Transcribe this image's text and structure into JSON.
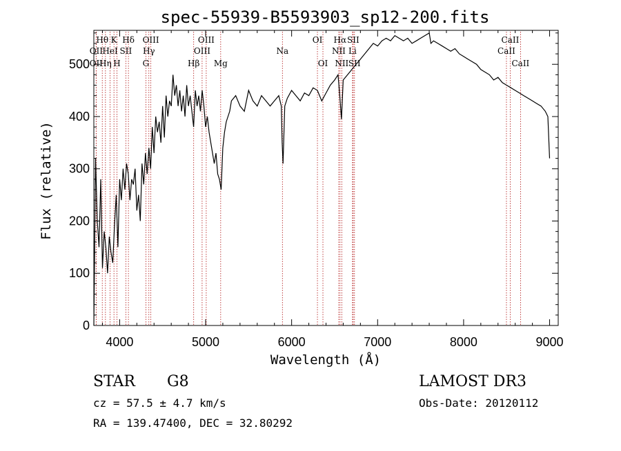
{
  "chart_data": {
    "type": "line",
    "title": "spec-55939-B5593903_sp12-200.fits",
    "xlabel": "Wavelength (Å)",
    "ylabel": "Flux (relative)",
    "xlim": [
      3700,
      9100
    ],
    "ylim": [
      0,
      565
    ],
    "xticks": [
      4000,
      5000,
      6000,
      7000,
      8000,
      9000
    ],
    "yticks": [
      0,
      100,
      200,
      300,
      400,
      500
    ],
    "grid": false,
    "series": [
      {
        "name": "flux",
        "x": [
          3700,
          3720,
          3740,
          3760,
          3780,
          3800,
          3820,
          3840,
          3860,
          3880,
          3900,
          3920,
          3940,
          3960,
          3980,
          4000,
          4020,
          4040,
          4060,
          4080,
          4100,
          4120,
          4140,
          4160,
          4180,
          4200,
          4220,
          4240,
          4260,
          4280,
          4300,
          4320,
          4340,
          4360,
          4380,
          4400,
          4420,
          4440,
          4460,
          4480,
          4500,
          4520,
          4540,
          4560,
          4580,
          4600,
          4620,
          4640,
          4660,
          4680,
          4700,
          4720,
          4740,
          4760,
          4780,
          4800,
          4820,
          4840,
          4860,
          4880,
          4900,
          4920,
          4940,
          4960,
          4980,
          5000,
          5020,
          5040,
          5060,
          5080,
          5100,
          5120,
          5140,
          5160,
          5180,
          5200,
          5220,
          5240,
          5260,
          5280,
          5300,
          5350,
          5400,
          5450,
          5500,
          5550,
          5600,
          5650,
          5700,
          5750,
          5800,
          5850,
          5880,
          5890,
          5900,
          5920,
          5950,
          6000,
          6050,
          6100,
          6150,
          6200,
          6250,
          6300,
          6350,
          6400,
          6450,
          6500,
          6540,
          6560,
          6580,
          6600,
          6650,
          6700,
          6750,
          6800,
          6850,
          6900,
          6950,
          7000,
          7050,
          7100,
          7150,
          7200,
          7250,
          7300,
          7350,
          7400,
          7450,
          7500,
          7550,
          7600,
          7620,
          7650,
          7700,
          7750,
          7800,
          7850,
          7900,
          7950,
          8000,
          8050,
          8100,
          8150,
          8200,
          8250,
          8300,
          8350,
          8400,
          8450,
          8500,
          8550,
          8600,
          8650,
          8700,
          8750,
          8800,
          8850,
          8900,
          8950,
          8980,
          9000
        ],
        "y": [
          0,
          320,
          200,
          150,
          280,
          110,
          180,
          150,
          100,
          170,
          140,
          120,
          190,
          250,
          150,
          280,
          240,
          300,
          260,
          310,
          290,
          240,
          280,
          270,
          300,
          220,
          250,
          200,
          310,
          270,
          330,
          290,
          340,
          300,
          380,
          330,
          400,
          370,
          390,
          350,
          420,
          360,
          440,
          400,
          430,
          420,
          480,
          440,
          460,
          420,
          450,
          410,
          440,
          400,
          460,
          420,
          440,
          410,
          380,
          450,
          420,
          440,
          410,
          450,
          420,
          380,
          400,
          370,
          350,
          330,
          310,
          330,
          290,
          280,
          260,
          340,
          370,
          390,
          400,
          410,
          430,
          440,
          420,
          410,
          450,
          430,
          420,
          440,
          430,
          420,
          430,
          440,
          420,
          350,
          310,
          420,
          435,
          450,
          440,
          430,
          445,
          440,
          455,
          450,
          430,
          445,
          460,
          470,
          480,
          440,
          395,
          470,
          480,
          490,
          500,
          510,
          520,
          530,
          540,
          535,
          545,
          550,
          545,
          555,
          550,
          545,
          550,
          540,
          545,
          550,
          555,
          560,
          540,
          545,
          540,
          535,
          530,
          525,
          530,
          520,
          515,
          510,
          505,
          500,
          490,
          485,
          480,
          470,
          475,
          465,
          460,
          455,
          450,
          445,
          440,
          435,
          430,
          425,
          420,
          410,
          400,
          320
        ]
      }
    ],
    "spectral_lines": [
      {
        "label": "Hθ",
        "wavelength": 3798,
        "row": 1
      },
      {
        "label": "OII",
        "wavelength": 3727,
        "row": 2
      },
      {
        "label": "OII",
        "wavelength": 3727,
        "row": 3
      },
      {
        "label": "Hη",
        "wavelength": 3835,
        "row": 3
      },
      {
        "label": "HeI",
        "wavelength": 3889,
        "row": 2
      },
      {
        "label": "K",
        "wavelength": 3934,
        "row": 1
      },
      {
        "label": "H",
        "wavelength": 3969,
        "row": 3
      },
      {
        "label": "SII",
        "wavelength": 4072,
        "row": 2
      },
      {
        "label": "Hδ",
        "wavelength": 4102,
        "row": 1
      },
      {
        "label": "OIII",
        "wavelength": 4363,
        "row": 1
      },
      {
        "label": "Hγ",
        "wavelength": 4340,
        "row": 2
      },
      {
        "label": "G",
        "wavelength": 4305,
        "row": 3
      },
      {
        "label": "Hβ",
        "wavelength": 4861,
        "row": 3
      },
      {
        "label": "OIII",
        "wavelength": 4959,
        "row": 2
      },
      {
        "label": "OIII",
        "wavelength": 5007,
        "row": 1
      },
      {
        "label": "Mg",
        "wavelength": 5175,
        "row": 3
      },
      {
        "label": "Na",
        "wavelength": 5893,
        "row": 2
      },
      {
        "label": "OI",
        "wavelength": 6300,
        "row": 1
      },
      {
        "label": "OI",
        "wavelength": 6364,
        "row": 3
      },
      {
        "label": "NII",
        "wavelength": 6548,
        "row": 2
      },
      {
        "label": "Hα",
        "wavelength": 6563,
        "row": 1
      },
      {
        "label": "NII",
        "wavelength": 6583,
        "row": 3
      },
      {
        "label": "SII",
        "wavelength": 6716,
        "row": 1
      },
      {
        "label": "Li",
        "wavelength": 6708,
        "row": 2
      },
      {
        "label": "SII",
        "wavelength": 6731,
        "row": 3
      },
      {
        "label": "CaII",
        "wavelength": 8498,
        "row": 2
      },
      {
        "label": "CaII",
        "wavelength": 8542,
        "row": 1
      },
      {
        "label": "CaII",
        "wavelength": 8662,
        "row": 3
      }
    ]
  },
  "info": {
    "object_class": "STAR",
    "subclass": "G8",
    "survey": "LAMOST DR3",
    "redshift": "cz = 57.5 ± 4.7 km/s",
    "obs_date": "Obs-Date: 20120112",
    "coords": "RA = 139.47400, DEC =  32.80292"
  },
  "colors": {
    "line_marker": "#b01010",
    "spectrum": "#000000"
  }
}
